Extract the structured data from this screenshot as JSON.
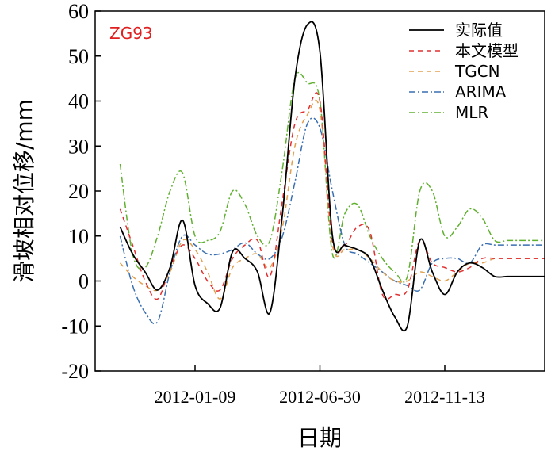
{
  "chart_data": {
    "type": "line",
    "title": "",
    "annotation": {
      "text": "ZG93",
      "color": "#e02020"
    },
    "xlabel": "日期",
    "ylabel": "滑坡相对位移/mm",
    "ylim": [
      -20,
      60
    ],
    "yticks": [
      -20,
      -10,
      0,
      10,
      20,
      30,
      40,
      50,
      60
    ],
    "xlim": [
      0,
      36
    ],
    "xticks": [
      {
        "x": 8,
        "label": "2012-01-09"
      },
      {
        "x": 18,
        "label": "2012-06-30"
      },
      {
        "x": 28,
        "label": "2012-11-13"
      }
    ],
    "grid": false,
    "legend_position": "top-right",
    "x": [
      2,
      3,
      4,
      5,
      6,
      7,
      8,
      9,
      10,
      11,
      12,
      13,
      14,
      15,
      16,
      17,
      18,
      19,
      20,
      21,
      22,
      23,
      24,
      25,
      26,
      27,
      28,
      29,
      30,
      31,
      32,
      33,
      34,
      35,
      36
    ],
    "series": [
      {
        "name": "实际值",
        "color": "#000000",
        "dash": "",
        "values": [
          12,
          6,
          2,
          -2,
          3,
          13.5,
          -1,
          -5,
          -6,
          6.5,
          5,
          2,
          -7,
          15,
          45,
          57,
          51,
          10,
          8,
          7,
          5,
          -2,
          -8,
          -10,
          9,
          2,
          -3,
          2,
          4,
          3,
          1,
          1,
          1,
          1,
          1
        ]
      },
      {
        "name": "本文模型",
        "color": "#e03030",
        "dash": "6,5",
        "values": [
          16,
          8,
          0,
          -4,
          3,
          8,
          5,
          0,
          -2,
          5,
          8,
          9,
          1,
          18,
          35,
          38,
          40,
          9,
          8,
          12,
          11,
          -3,
          -3,
          -2,
          9,
          4,
          3,
          2,
          3,
          5,
          5,
          5,
          5,
          5,
          5
        ]
      },
      {
        "name": "TGCN",
        "color": "#e0a050",
        "dash": "6,5",
        "values": [
          4,
          1,
          -1,
          -2,
          2,
          9,
          7,
          2,
          -4,
          3,
          5,
          6,
          3,
          12,
          30,
          37,
          38,
          8,
          7,
          7,
          5,
          2,
          0,
          0,
          2,
          1,
          0,
          2,
          4,
          4,
          5,
          5,
          5,
          5,
          5
        ]
      },
      {
        "name": "ARIMA",
        "color": "#3a6fb0",
        "dash": "8,3,2,3",
        "values": [
          10,
          -1,
          -7,
          -9,
          2,
          10,
          8,
          6,
          6,
          7,
          8.5,
          6,
          5,
          10,
          22,
          35,
          34,
          20,
          8,
          6,
          4,
          2,
          0,
          -1,
          -2,
          4,
          5,
          5,
          4,
          8,
          8,
          8,
          8,
          8,
          8
        ]
      },
      {
        "name": "MLR",
        "color": "#60b030",
        "dash": "8,3,2,3",
        "values": [
          26,
          6,
          3,
          10,
          20,
          24,
          10,
          9,
          11,
          20,
          17,
          10,
          9,
          25,
          45,
          44,
          40,
          6,
          15,
          17,
          10,
          5,
          2,
          1,
          20,
          20,
          10,
          12,
          16,
          14,
          9,
          9,
          9,
          9,
          9
        ]
      }
    ]
  }
}
